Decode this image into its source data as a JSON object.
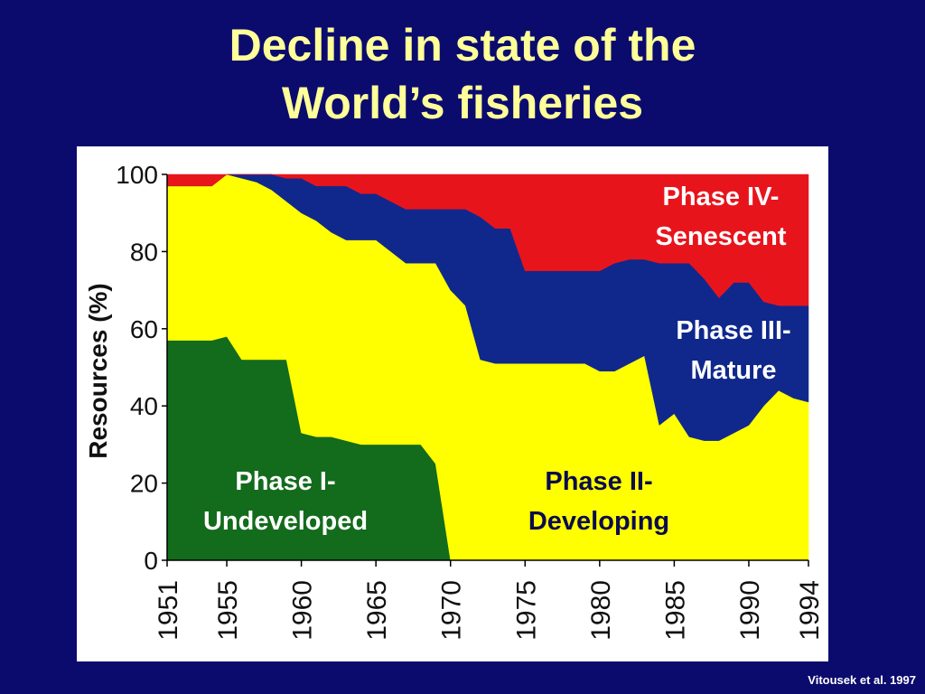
{
  "chart_data": {
    "type": "stacked-area",
    "title": "Decline in state of the\nWorld’s fisheries",
    "source": "Vitousek et al. 1997",
    "y_label": "Resources (%)",
    "x": [
      1951,
      1952,
      1953,
      1954,
      1955,
      1956,
      1957,
      1958,
      1959,
      1960,
      1961,
      1962,
      1963,
      1964,
      1965,
      1966,
      1967,
      1968,
      1969,
      1970,
      1971,
      1972,
      1973,
      1974,
      1975,
      1976,
      1977,
      1978,
      1979,
      1980,
      1981,
      1982,
      1983,
      1984,
      1985,
      1986,
      1987,
      1988,
      1989,
      1990,
      1991,
      1992,
      1993,
      1994
    ],
    "xlim": [
      1951,
      1994
    ],
    "xticks": [
      1951,
      1955,
      1960,
      1965,
      1970,
      1975,
      1980,
      1985,
      1990,
      1994
    ],
    "ylim": [
      0,
      100
    ],
    "yticks": [
      0,
      20,
      40,
      60,
      80,
      100
    ],
    "series": [
      {
        "name": "Phase I-\nUndeveloped",
        "color": "#136b1c",
        "values": [
          57,
          57,
          57,
          57,
          58,
          52,
          52,
          52,
          52,
          33,
          32,
          32,
          31,
          30,
          30,
          30,
          30,
          30,
          25,
          0,
          0,
          0,
          0,
          0,
          0,
          0,
          0,
          0,
          0,
          0,
          0,
          0,
          0,
          0,
          0,
          0,
          0,
          0,
          0,
          0,
          0,
          0,
          0,
          0
        ]
      },
      {
        "name": "Phase II-\nDeveloping",
        "color": "#ffff00",
        "values": [
          40,
          40,
          40,
          40,
          42,
          47,
          46,
          44,
          41,
          57,
          56,
          53,
          52,
          53,
          53,
          50,
          47,
          47,
          52,
          70,
          66,
          52,
          51,
          51,
          51,
          51,
          51,
          51,
          51,
          49,
          49,
          51,
          53,
          35,
          38,
          32,
          31,
          31,
          33,
          35,
          40,
          44,
          42,
          41
        ]
      },
      {
        "name": "Phase III-\nMature",
        "color": "#10288c",
        "values": [
          0,
          0,
          0,
          0,
          0,
          1,
          2,
          4,
          6,
          9,
          9,
          12,
          14,
          12,
          12,
          13,
          14,
          14,
          14,
          21,
          25,
          37,
          35,
          35,
          24,
          24,
          24,
          24,
          24,
          26,
          28,
          27,
          25,
          42,
          39,
          45,
          42,
          37,
          39,
          37,
          27,
          22,
          24,
          25
        ]
      },
      {
        "name": "Phase IV-\nSenescent",
        "color": "#e8141c",
        "values": [
          3,
          3,
          3,
          3,
          0,
          0,
          0,
          0,
          1,
          1,
          3,
          3,
          3,
          5,
          5,
          7,
          9,
          9,
          9,
          9,
          9,
          11,
          14,
          14,
          25,
          25,
          25,
          25,
          25,
          25,
          23,
          22,
          22,
          23,
          23,
          23,
          27,
          32,
          28,
          28,
          33,
          34,
          34,
          34
        ]
      }
    ]
  }
}
